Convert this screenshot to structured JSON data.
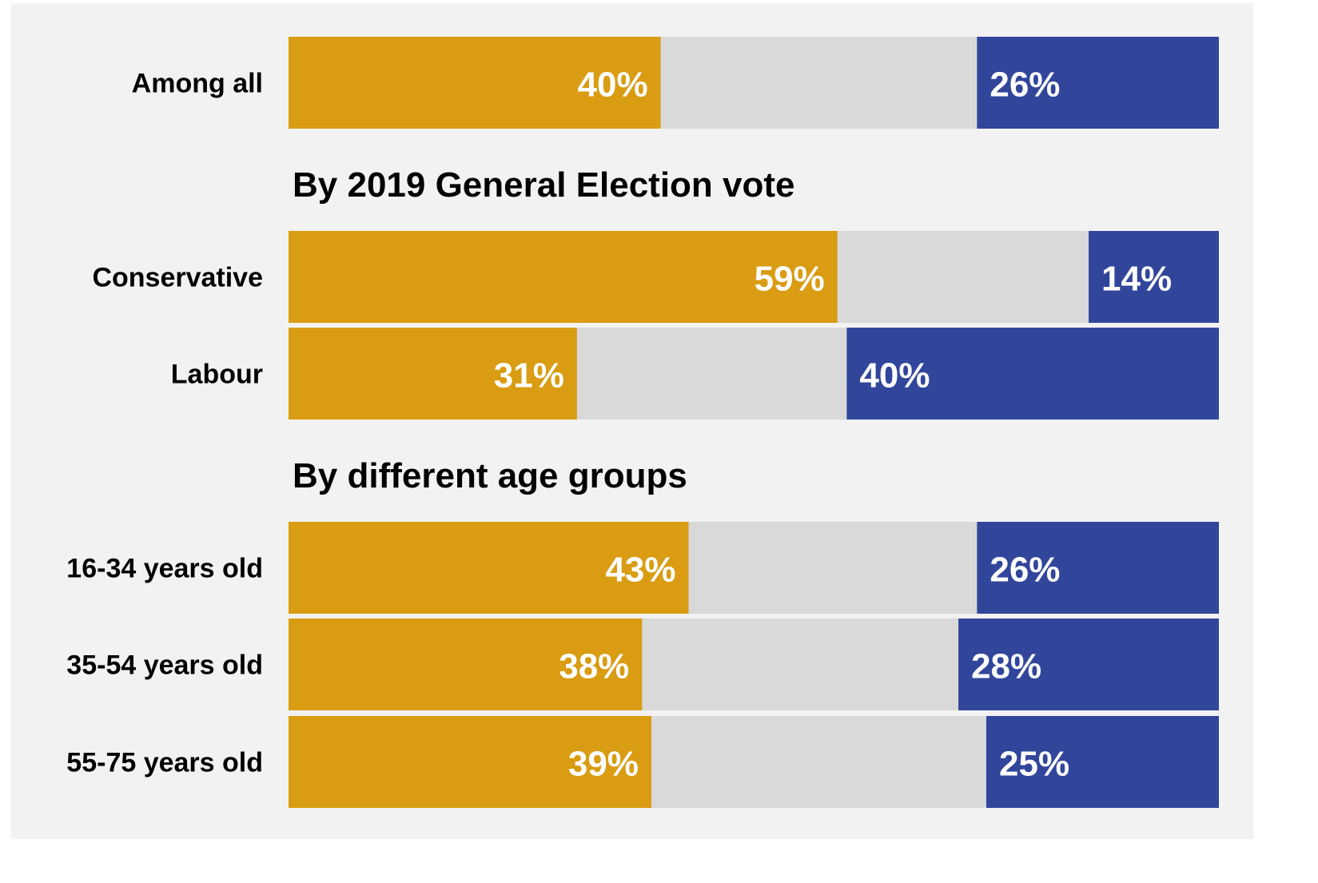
{
  "colors": {
    "left_segment": "#d99c12",
    "middle_segment": "#d9d9d9",
    "right_segment": "#31469b",
    "panel_background": "#f2f2f2"
  },
  "chart_data": {
    "type": "bar",
    "orientation": "horizontal",
    "stacked": true,
    "xlim": [
      0,
      100
    ],
    "units": "%",
    "sections": [
      {
        "heading": "",
        "rows": [
          {
            "label": "Among all",
            "left": 40,
            "right": 26
          }
        ]
      },
      {
        "heading": "By 2019 General Election vote",
        "rows": [
          {
            "label": "Conservative",
            "left": 59,
            "right": 14
          },
          {
            "label": "Labour",
            "left": 31,
            "right": 40
          }
        ]
      },
      {
        "heading": "By different age groups",
        "rows": [
          {
            "label": "16-34 years old",
            "left": 43,
            "right": 26
          },
          {
            "label": "35-54 years old",
            "left": 38,
            "right": 28
          },
          {
            "label": "55-75 years old",
            "left": 39,
            "right": 25
          }
        ]
      }
    ],
    "legend": "none",
    "grid": false
  }
}
